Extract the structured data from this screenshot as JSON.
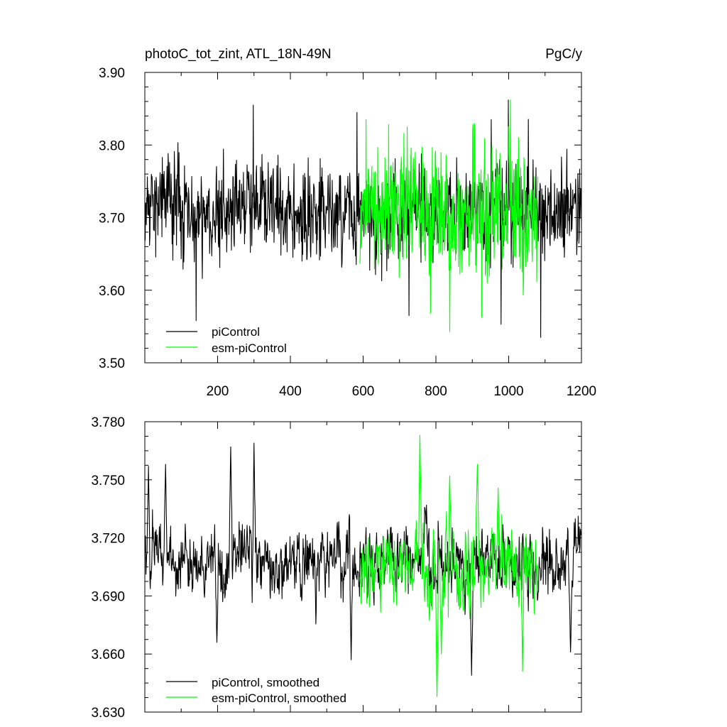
{
  "chart_data": [
    {
      "type": "line",
      "title": "photoC_tot_zint, ATL_18N-49N",
      "units": "PgC/y",
      "xlim": [
        0,
        1200
      ],
      "ylim": [
        3.5,
        3.9
      ],
      "x_tick_labels": [
        "200",
        "400",
        "600",
        "800",
        "1000",
        "1200"
      ],
      "x_tick_values": [
        200,
        400,
        600,
        800,
        1000,
        1200
      ],
      "y_tick_labels": [
        "3.50",
        "3.60",
        "3.70",
        "3.80",
        "3.90"
      ],
      "y_tick_values": [
        3.5,
        3.6,
        3.7,
        3.8,
        3.9
      ],
      "legend_position": "bottom-left",
      "series": [
        {
          "name": "piControl",
          "color": "#000000",
          "x_range": [
            1,
            1200
          ],
          "baseline": 3.712,
          "noise_amplitude": 0.036,
          "peaks": [
            {
              "x": 298,
              "y": 3.855
            },
            {
              "x": 999,
              "y": 3.862
            },
            {
              "x": 583,
              "y": 3.845
            }
          ],
          "troughs": [
            {
              "x": 141,
              "y": 3.558
            },
            {
              "x": 1088,
              "y": 3.535
            },
            {
              "x": 979,
              "y": 3.553
            },
            {
              "x": 726,
              "y": 3.565
            }
          ]
        },
        {
          "name": "esm-piControl",
          "color": "#00ff00",
          "x_range": [
            591,
            1080
          ],
          "baseline": 3.708,
          "noise_amplitude": 0.05,
          "peaks": [
            {
              "x": 1005,
              "y": 3.862
            },
            {
              "x": 608,
              "y": 3.835
            },
            {
              "x": 721,
              "y": 3.825
            }
          ],
          "troughs": [
            {
              "x": 838,
              "y": 3.543
            },
            {
              "x": 785,
              "y": 3.568
            },
            {
              "x": 926,
              "y": 3.563
            }
          ]
        }
      ]
    },
    {
      "type": "line",
      "title": "",
      "xlim": [
        0,
        1200
      ],
      "ylim": [
        3.63,
        3.78
      ],
      "y_tick_labels": [
        "3.630",
        "3.660",
        "3.690",
        "3.720",
        "3.750",
        "3.780"
      ],
      "y_tick_values": [
        3.63,
        3.66,
        3.69,
        3.72,
        3.75,
        3.78
      ],
      "legend_position": "bottom-left",
      "series": [
        {
          "name": "piControl, smoothed",
          "color": "#000000",
          "x_range": [
            1,
            1200
          ],
          "baseline": 3.708,
          "noise_amplitude": 0.016,
          "peaks": [
            {
              "x": 300,
              "y": 3.769
            },
            {
              "x": 236,
              "y": 3.767
            },
            {
              "x": 10,
              "y": 3.757
            },
            {
              "x": 57,
              "y": 3.758
            }
          ],
          "troughs": [
            {
              "x": 567,
              "y": 3.657
            },
            {
              "x": 898,
              "y": 3.649
            },
            {
              "x": 1170,
              "y": 3.661
            },
            {
              "x": 198,
              "y": 3.666
            }
          ]
        },
        {
          "name": "esm-piControl, smoothed",
          "color": "#00ff00",
          "x_range": [
            591,
            1080
          ],
          "baseline": 3.706,
          "noise_amplitude": 0.02,
          "peaks": [
            {
              "x": 756,
              "y": 3.773
            },
            {
              "x": 914,
              "y": 3.758
            },
            {
              "x": 838,
              "y": 3.752
            }
          ],
          "troughs": [
            {
              "x": 803,
              "y": 3.638
            },
            {
              "x": 1038,
              "y": 3.651
            },
            {
              "x": 815,
              "y": 3.66
            }
          ]
        }
      ]
    }
  ]
}
